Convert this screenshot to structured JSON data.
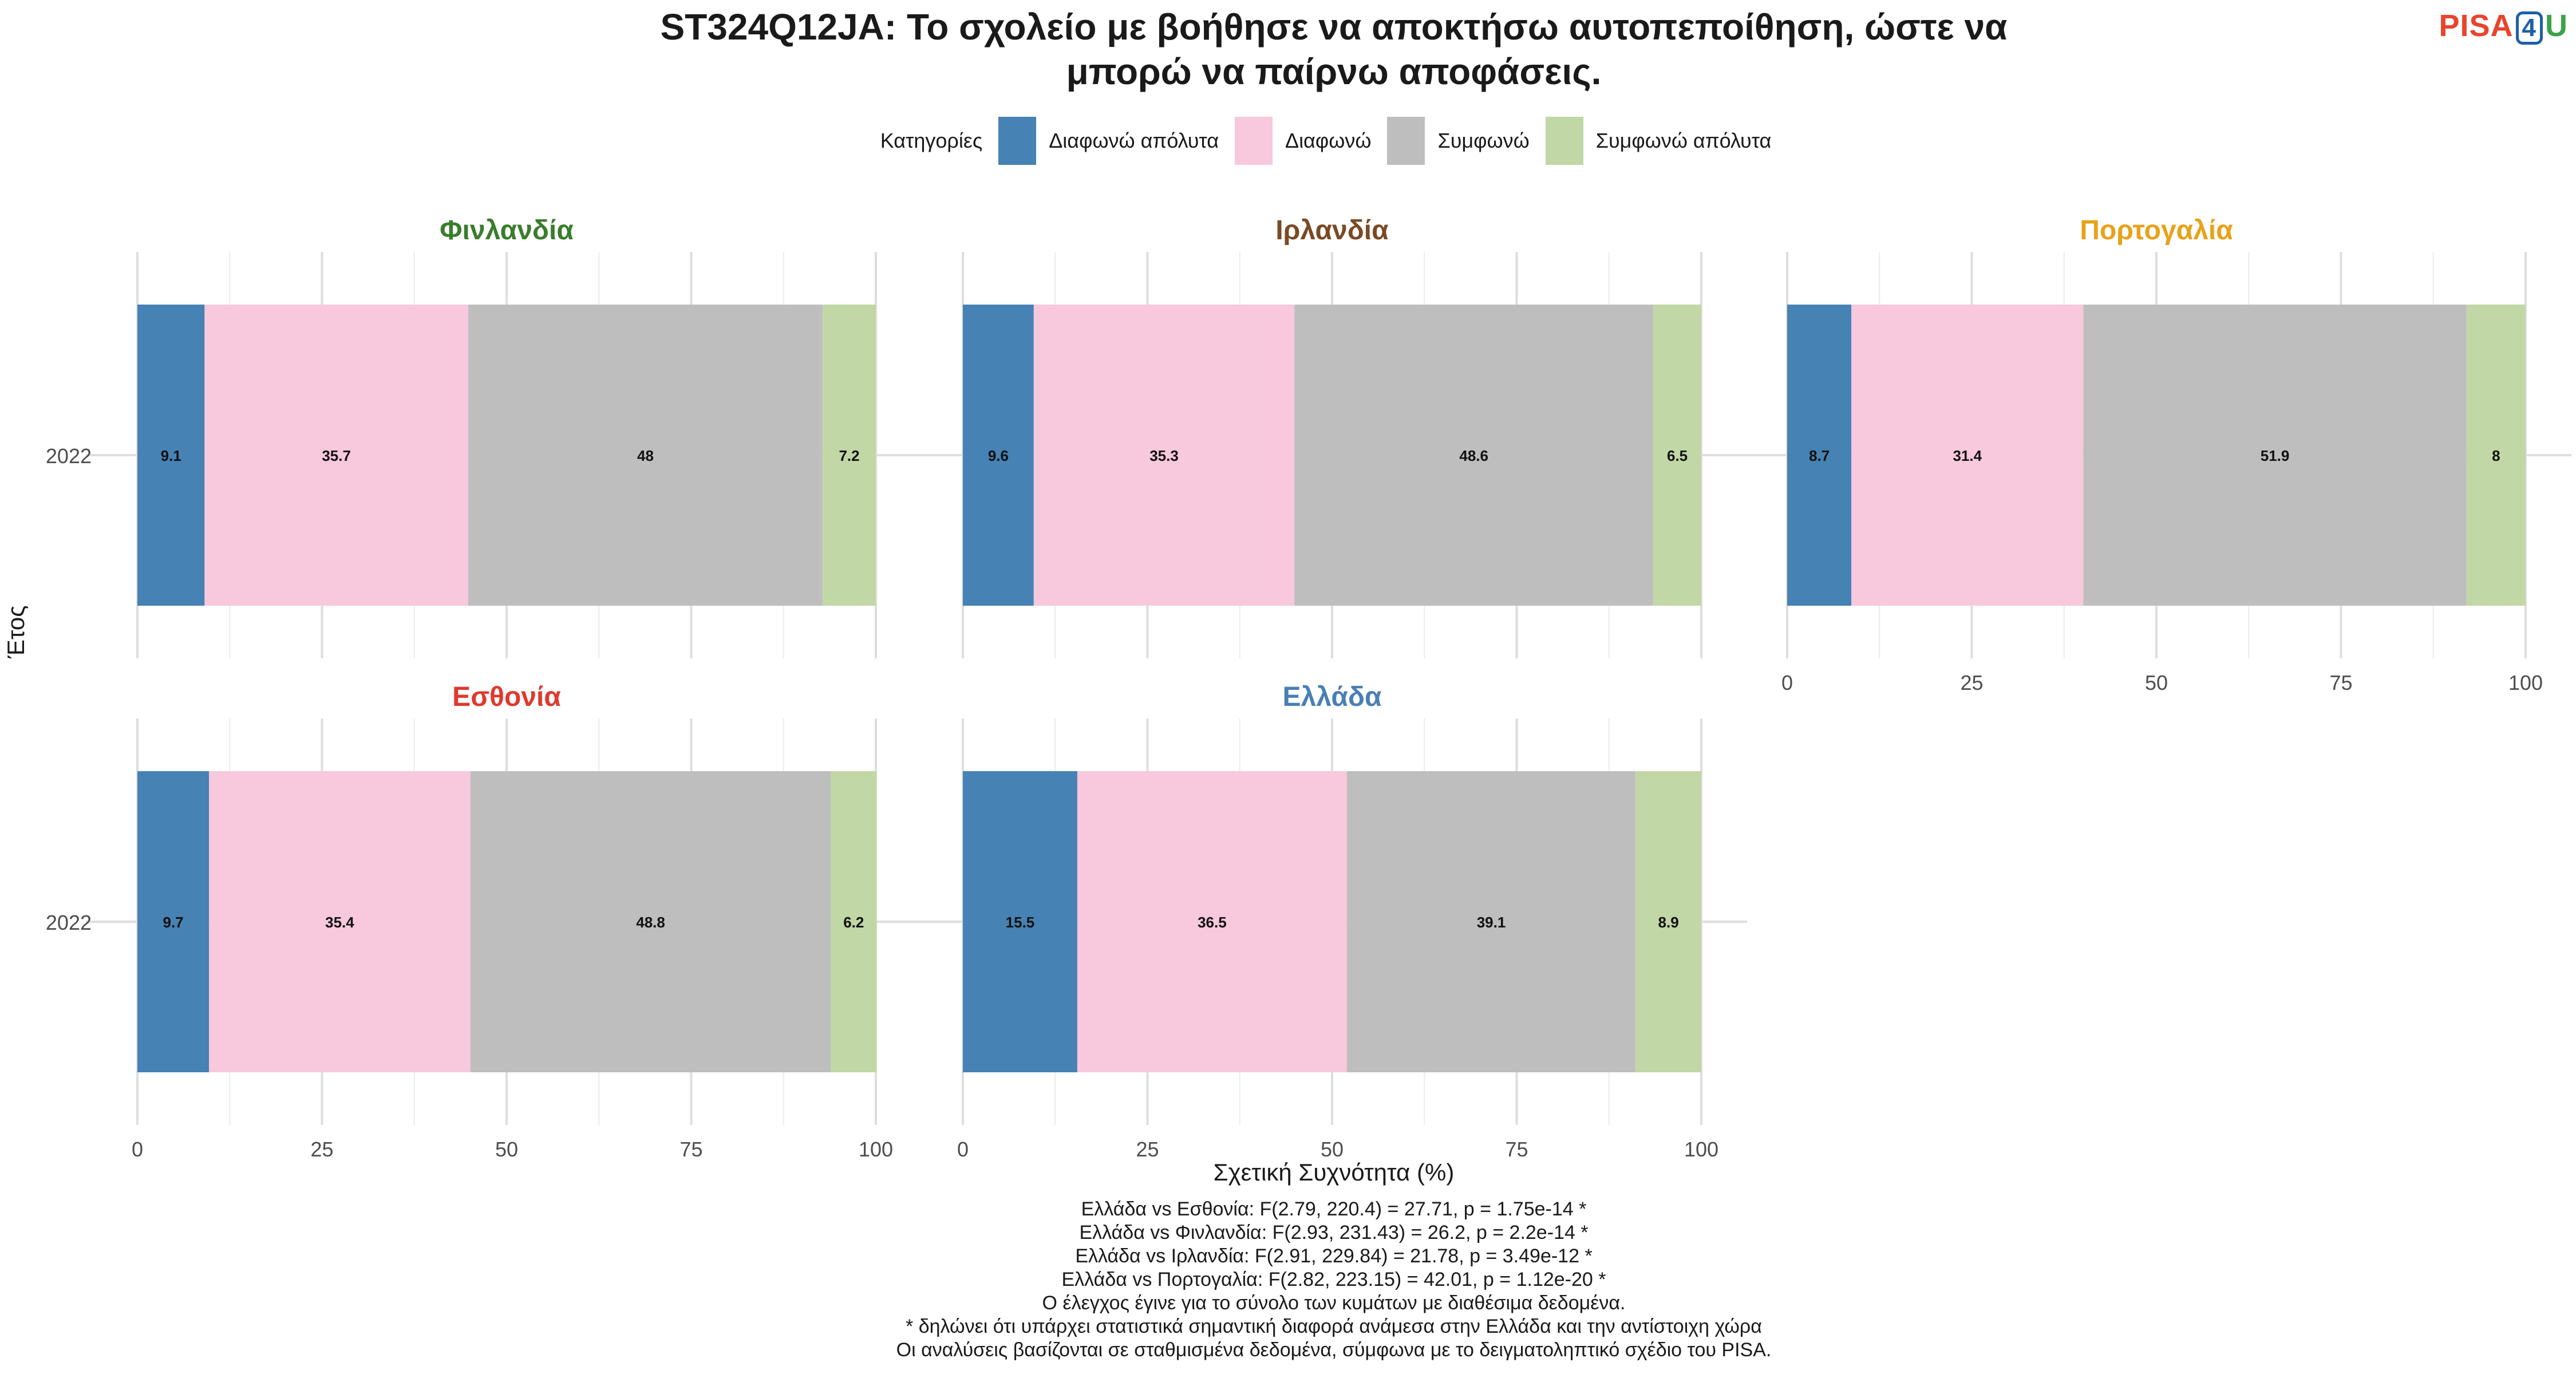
{
  "title": "ST324Q12JA: Το σχολείο με βοήθησε να αποκτήσω αυτοπεποίθηση, ώστε να μπορώ να παίρνω αποφάσεις.",
  "title_lines": [
    "ST324Q12JA: Το σχολείο με βοήθησε να αποκτήσω αυτοπεποίθηση, ώστε να",
    "μπορώ να παίρνω αποφάσεις."
  ],
  "logo": {
    "part1": "PISA",
    "part2": "4",
    "part3": "U"
  },
  "legend": {
    "title": "Κατηγορίες",
    "items": [
      {
        "label": "Διαφωνώ απόλυτα",
        "color": "#4682b4"
      },
      {
        "label": "Διαφωνώ",
        "color": "#f8c8dc"
      },
      {
        "label": "Συμφωνώ",
        "color": "#bebebe"
      },
      {
        "label": "Συμφωνώ απόλυτα",
        "color": "#c1d7a5"
      }
    ]
  },
  "chart_data": {
    "type": "bar",
    "orientation": "horizontal-stacked",
    "xlabel": "Σχετική Συχνότητα (%)",
    "ylabel": "Έτος",
    "xlim": [
      0,
      100
    ],
    "xticks": [
      "0",
      "25",
      "50",
      "75",
      "100"
    ],
    "categories": [
      "2022"
    ],
    "series_names": [
      "Διαφωνώ απόλυτα",
      "Διαφωνώ",
      "Συμφωνώ",
      "Συμφωνώ απόλυτα"
    ],
    "panels": [
      {
        "name": "Φινλανδία",
        "color": "#3a7d2c",
        "values": [
          9.1,
          35.7,
          48,
          7.2
        ],
        "labels": [
          "9.1",
          "35.7",
          "48",
          "7.2"
        ]
      },
      {
        "name": "Ιρλανδία",
        "color": "#7a4a24",
        "values": [
          9.6,
          35.3,
          48.6,
          6.5
        ],
        "labels": [
          "9.6",
          "35.3",
          "48.6",
          "6.5"
        ]
      },
      {
        "name": "Πορτογαλία",
        "color": "#e8a21a",
        "values": [
          8.7,
          31.4,
          51.9,
          8
        ],
        "labels": [
          "8.7",
          "31.4",
          "51.9",
          "8"
        ]
      },
      {
        "name": "Εσθονία",
        "color": "#e0392d",
        "values": [
          9.7,
          35.4,
          48.8,
          6.2
        ],
        "labels": [
          "9.7",
          "35.4",
          "48.8",
          "6.2"
        ]
      },
      {
        "name": "Ελλάδα",
        "color": "#4a7fb5",
        "values": [
          15.5,
          36.5,
          39.1,
          8.9
        ],
        "labels": [
          "15.5",
          "36.5",
          "39.1",
          "8.9"
        ]
      }
    ]
  },
  "notes": [
    "Ελλάδα vs Εσθονία: F(2.79, 220.4) = 27.71, p = 1.75e-14 *",
    "Ελλάδα vs Φινλανδία: F(2.93, 231.43) = 26.2, p = 2.2e-14 *",
    "Ελλάδα vs Ιρλανδία: F(2.91, 229.84) = 21.78, p = 3.49e-12 *",
    "Ελλάδα vs Πορτογαλία: F(2.82, 223.15) = 42.01, p = 1.12e-20 *",
    "Ο έλεγχος έγινε για το σύνολο των κυμάτων με διαθέσιμα δεδομένα.",
    "* δηλώνει ότι υπάρχει στατιστικά σημαντική διαφορά ανάμεσα στην Ελλάδα και την αντίστοιχη χώρα",
    "Οι αναλύσεις βασίζονται σε σταθμισμένα δεδομένα, σύμφωνα με το δειγματοληπτικό σχέδιο του PISA."
  ]
}
